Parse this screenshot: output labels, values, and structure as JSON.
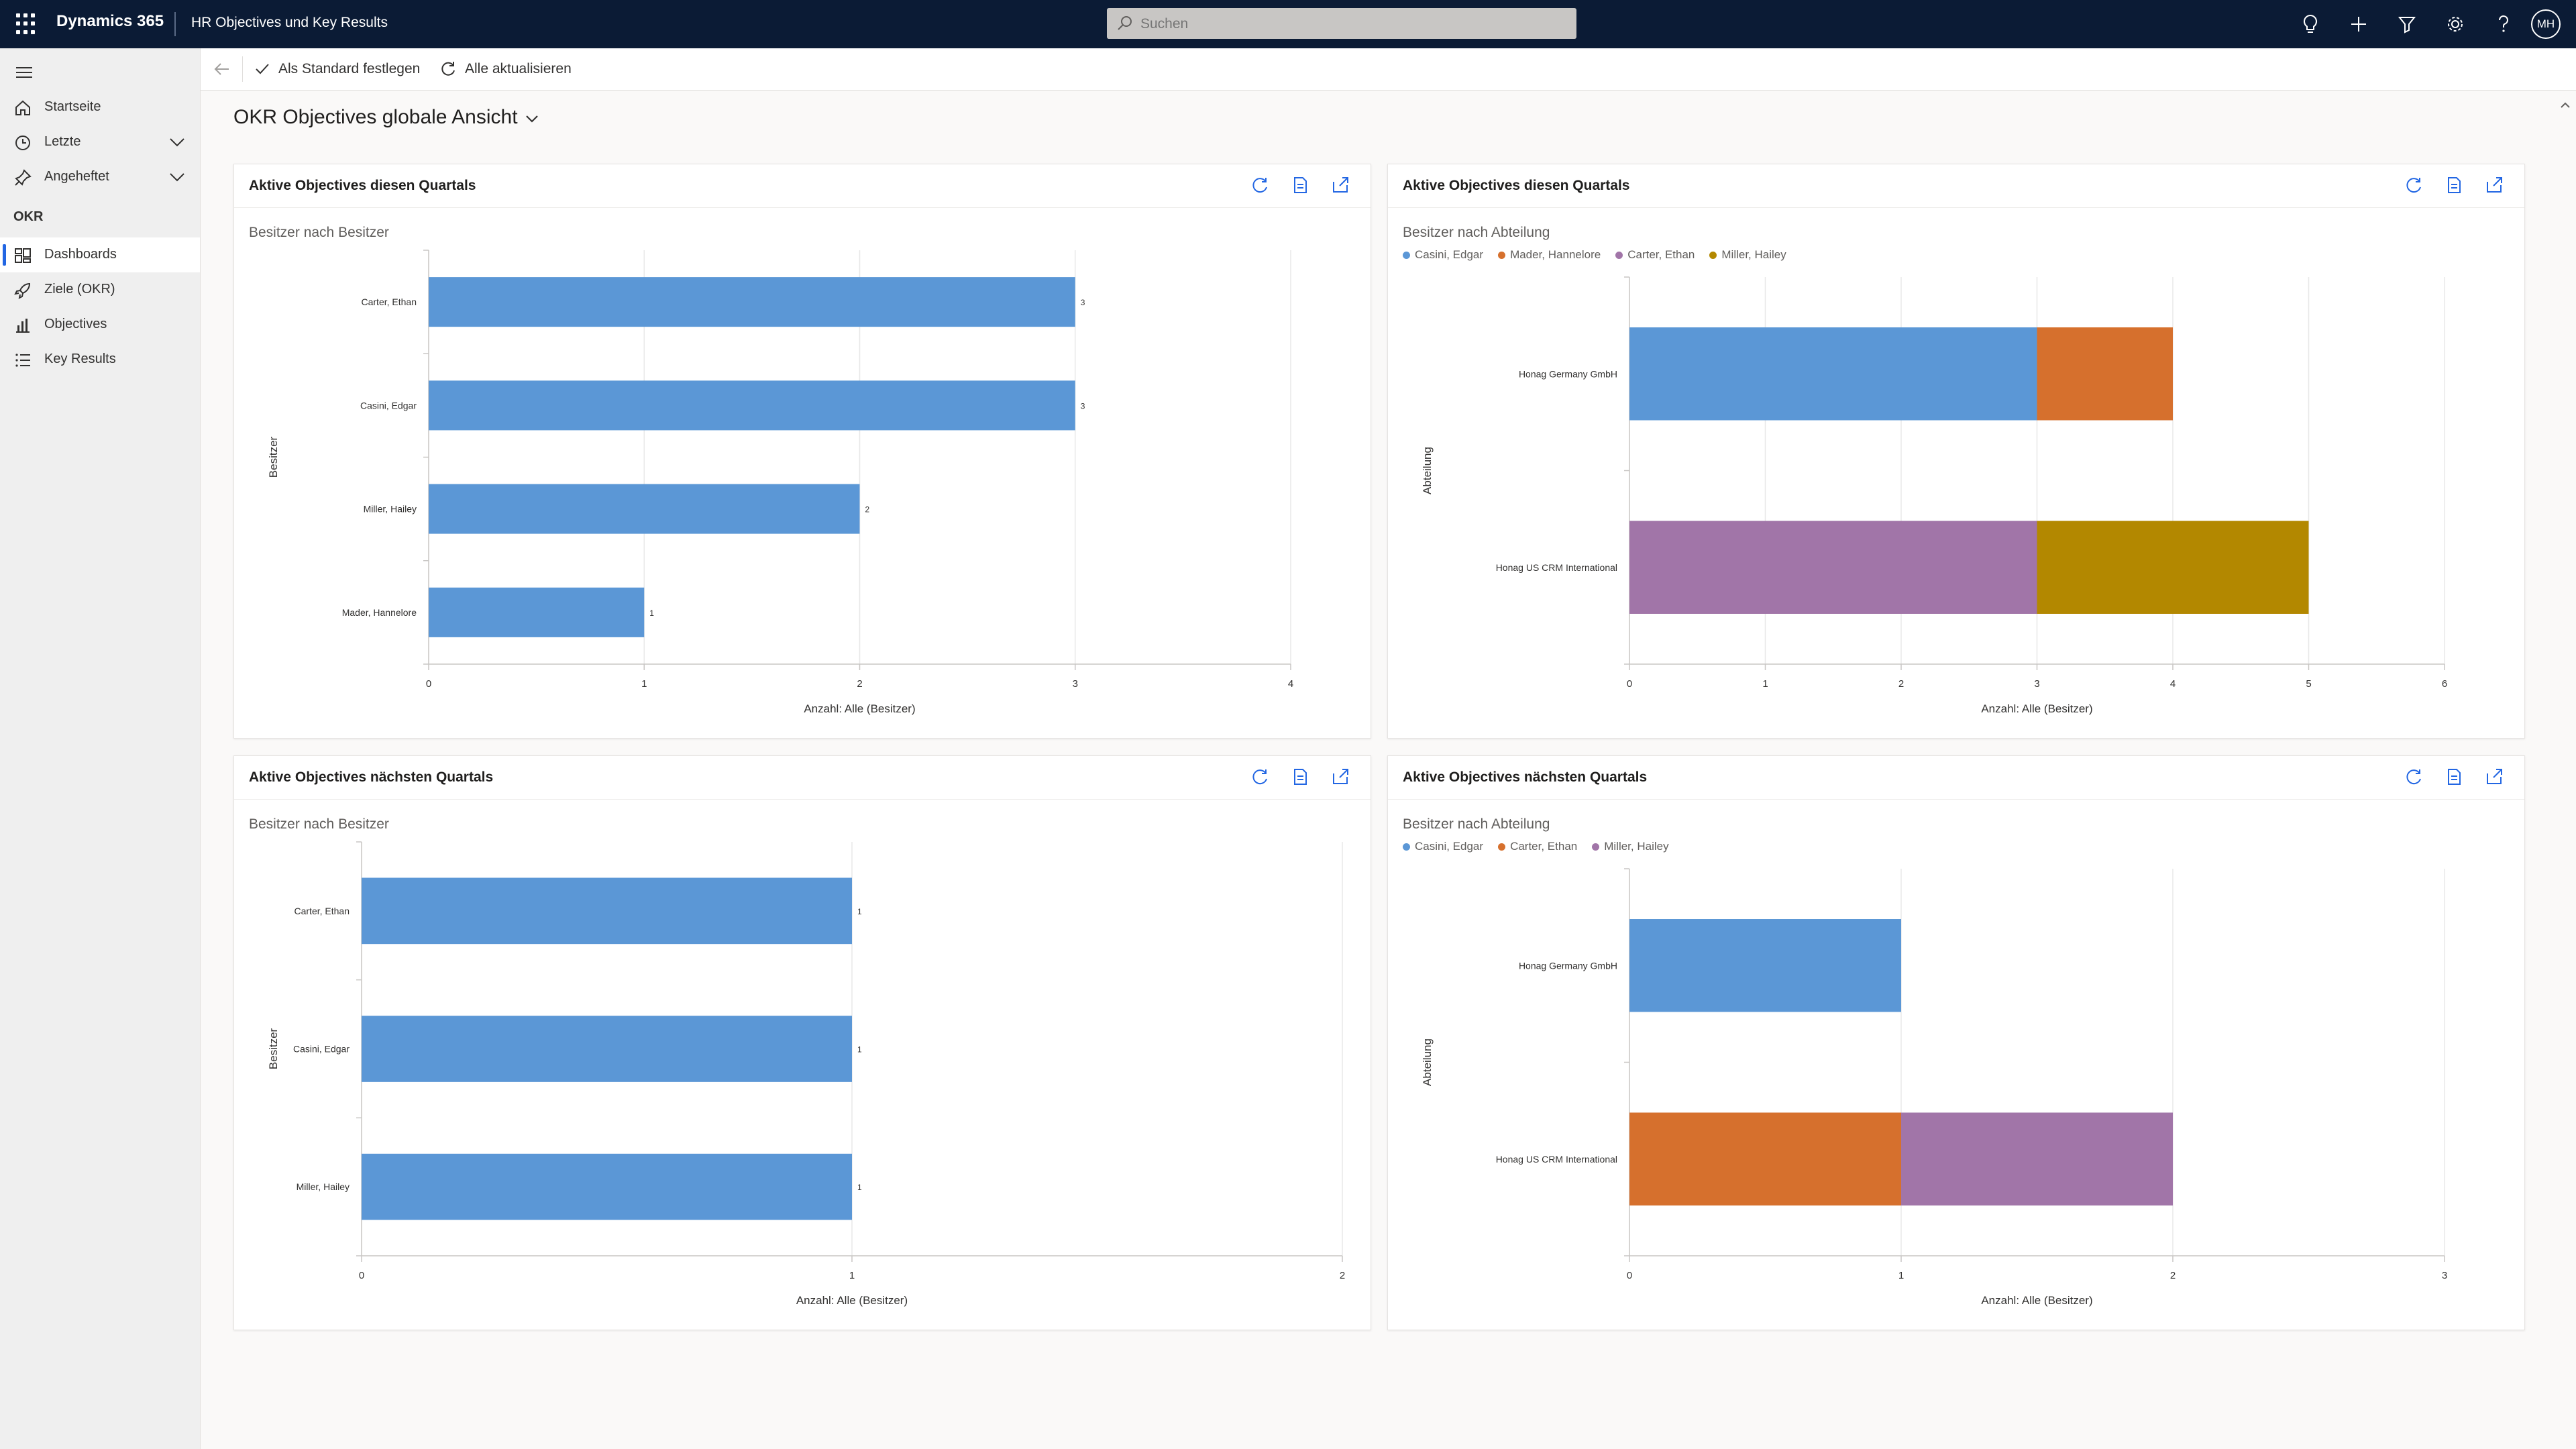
{
  "topbar": {
    "brand": "Dynamics 365",
    "app_name": "HR Objectives und Key Results",
    "search_placeholder": "Suchen",
    "avatar_initials": "MH"
  },
  "sidebar": {
    "items": [
      {
        "label": "Startseite",
        "icon": "home-icon"
      },
      {
        "label": "Letzte",
        "icon": "clock-icon"
      },
      {
        "label": "Angeheftet",
        "icon": "pin-icon"
      }
    ],
    "section_title": "OKR",
    "okr_items": [
      {
        "label": "Dashboards",
        "icon": "dashboard-icon",
        "active": true
      },
      {
        "label": "Ziele (OKR)",
        "icon": "rocket-icon"
      },
      {
        "label": "Objectives",
        "icon": "bar-chart-icon"
      },
      {
        "label": "Key Results",
        "icon": "list-icon"
      }
    ]
  },
  "cmdbar": {
    "set_default": "Als Standard festlegen",
    "refresh_all": "Alle aktualisieren"
  },
  "page": {
    "title": "OKR Objectives globale Ansicht"
  },
  "colors": {
    "blue": "#5b97d6",
    "orange": "#d6702d",
    "purple": "#a175a8",
    "gold": "#b38800",
    "accent": "#2266e3"
  },
  "cards": [
    {
      "title": "Aktive Objectives diesen Quartals",
      "subtitle": "Besitzer nach Besitzer",
      "legend": [],
      "chart_data": {
        "type": "bar",
        "orientation": "horizontal",
        "categories": [
          "Carter, Ethan",
          "Casini, Edgar",
          "Miller, Hailey",
          "Mader, Hannelore"
        ],
        "series": [
          {
            "values": [
              3,
              3,
              2,
              1
            ],
            "color": "#5b97d6"
          }
        ],
        "xlabel": "Anzahl: Alle (Besitzer)",
        "ylabel": "Besitzer",
        "xlim": [
          0,
          4
        ],
        "xticks": [
          0,
          1,
          2,
          3,
          4
        ],
        "data_labels": true
      }
    },
    {
      "title": "Aktive Objectives diesen Quartals",
      "subtitle": "Besitzer nach Abteilung",
      "legend": [
        {
          "label": "Casini, Edgar",
          "color": "#5b97d6"
        },
        {
          "label": "Mader, Hannelore",
          "color": "#d6702d"
        },
        {
          "label": "Carter, Ethan",
          "color": "#a175a8"
        },
        {
          "label": "Miller, Hailey",
          "color": "#b38800"
        }
      ],
      "chart_data": {
        "type": "bar",
        "orientation": "horizontal",
        "stacked": true,
        "categories": [
          "Honag Germany GmbH",
          "Honag US CRM International"
        ],
        "series": [
          {
            "name": "Casini, Edgar",
            "values": [
              3,
              0
            ],
            "color": "#5b97d6"
          },
          {
            "name": "Mader, Hannelore",
            "values": [
              1,
              0
            ],
            "color": "#d6702d"
          },
          {
            "name": "Carter, Ethan",
            "values": [
              0,
              3
            ],
            "color": "#a175a8"
          },
          {
            "name": "Miller, Hailey",
            "values": [
              0,
              2
            ],
            "color": "#b38800"
          }
        ],
        "xlabel": "Anzahl: Alle (Besitzer)",
        "ylabel": "Abteilung",
        "xlim": [
          0,
          6
        ],
        "xticks": [
          0,
          1,
          2,
          3,
          4,
          5,
          6
        ],
        "data_labels": false
      }
    },
    {
      "title": "Aktive Objectives nächsten Quartals",
      "subtitle": "Besitzer nach Besitzer",
      "legend": [],
      "chart_data": {
        "type": "bar",
        "orientation": "horizontal",
        "categories": [
          "Carter, Ethan",
          "Casini, Edgar",
          "Miller, Hailey"
        ],
        "series": [
          {
            "values": [
              1,
              1,
              1
            ],
            "color": "#5b97d6"
          }
        ],
        "xlabel": "Anzahl: Alle (Besitzer)",
        "ylabel": "Besitzer",
        "xlim": [
          0,
          2
        ],
        "xticks": [
          0,
          1,
          2
        ],
        "data_labels": true
      }
    },
    {
      "title": "Aktive Objectives nächsten Quartals",
      "subtitle": "Besitzer nach Abteilung",
      "legend": [
        {
          "label": "Casini, Edgar",
          "color": "#5b97d6"
        },
        {
          "label": "Carter, Ethan",
          "color": "#d6702d"
        },
        {
          "label": "Miller, Hailey",
          "color": "#a175a8"
        }
      ],
      "chart_data": {
        "type": "bar",
        "orientation": "horizontal",
        "stacked": true,
        "categories": [
          "Honag Germany GmbH",
          "Honag US CRM International"
        ],
        "series": [
          {
            "name": "Casini, Edgar",
            "values": [
              1,
              0
            ],
            "color": "#5b97d6"
          },
          {
            "name": "Carter, Ethan",
            "values": [
              0,
              1
            ],
            "color": "#d6702d"
          },
          {
            "name": "Miller, Hailey",
            "values": [
              0,
              1
            ],
            "color": "#a175a8"
          }
        ],
        "xlabel": "Anzahl: Alle (Besitzer)",
        "ylabel": "Abteilung",
        "xlim": [
          0,
          3
        ],
        "xticks": [
          0,
          1,
          2,
          3
        ],
        "data_labels": false
      }
    }
  ]
}
